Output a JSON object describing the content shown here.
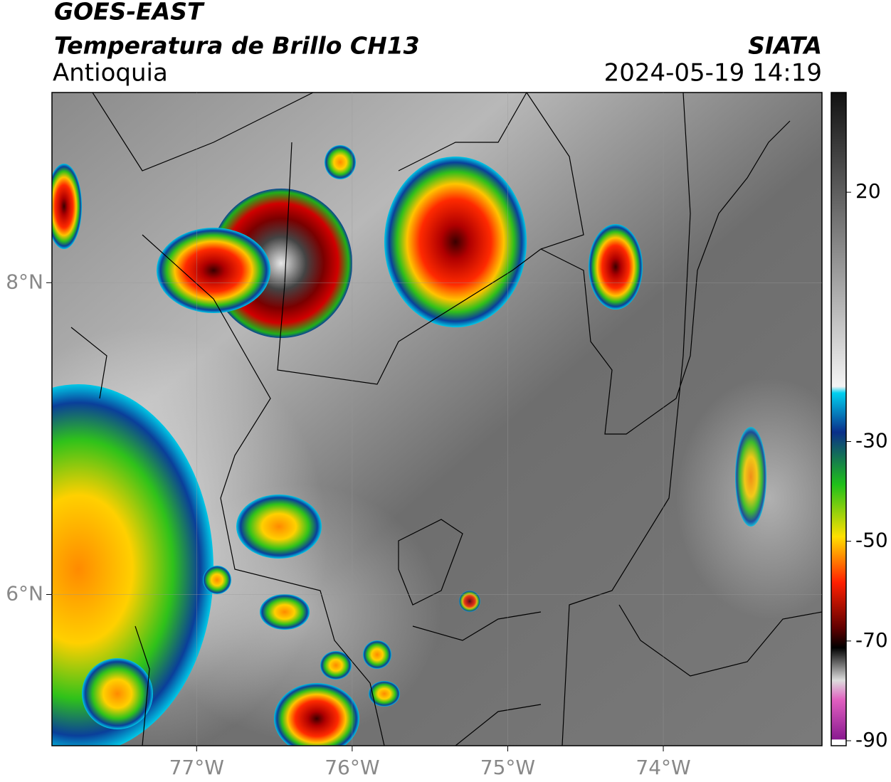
{
  "header": {
    "satellite": "GOES-EAST",
    "product": "Temperatura de Brillo CH13",
    "region": "Antioquia",
    "source": "SIATA",
    "datetime": "2024-05-19 14:19"
  },
  "map": {
    "xlim": [
      -77.93,
      -72.98
    ],
    "ylim": [
      5.03,
      9.22
    ],
    "xticks": [
      {
        "value": -77,
        "label": "77°W"
      },
      {
        "value": -76,
        "label": "76°W"
      },
      {
        "value": -75,
        "label": "75°W"
      },
      {
        "value": -74,
        "label": "74°W"
      }
    ],
    "yticks": [
      {
        "value": 6,
        "label": "6°N"
      },
      {
        "value": 8,
        "label": "8°N"
      }
    ]
  },
  "colorbar": {
    "lim": [
      -91,
      40
    ],
    "ticks": [
      20,
      -30,
      -50,
      -70,
      -90
    ]
  }
}
